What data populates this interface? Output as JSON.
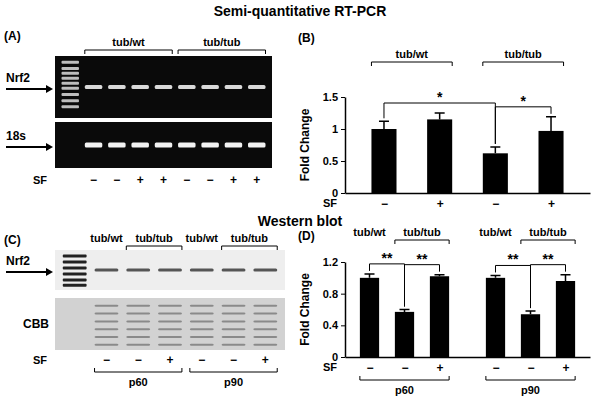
{
  "headings": [
    "Semi-quantitative RT-PCR",
    "Western blot"
  ],
  "gels": [
    {
      "panel_label": "(A)",
      "rows": [
        {
          "label": "Nrf2",
          "arrow": true
        },
        {
          "label": "18s",
          "arrow": true
        }
      ],
      "groups": [
        "tub/wt",
        "tub/wt",
        "tub/wt",
        "tub/wt",
        "tub/tub",
        "tub/tub",
        "tub/tub",
        "tub/tub"
      ],
      "sf_label": "SF",
      "sf": [
        "−",
        "−",
        "+",
        "+",
        "−",
        "−",
        "+",
        "+"
      ]
    },
    {
      "panel_label": "(C)",
      "rows": [
        {
          "label": "Nrf2",
          "arrow": true
        },
        {
          "label": "CBB",
          "arrow": false
        }
      ],
      "groups": [
        "tub/wt",
        "tub/tub",
        "tub/tub",
        "tub/wt",
        "tub/tub",
        "tub/tub"
      ],
      "sf_label": "SF",
      "sf": [
        "−",
        "−",
        "+",
        "−",
        "−",
        "+"
      ],
      "subgroups": [
        "p60",
        "p60",
        "p60",
        "p90",
        "p90",
        "p90"
      ]
    }
  ],
  "chart_data": [
    {
      "type": "bar",
      "panel_label": "(B)",
      "y_label": "Fold Change",
      "x_label": "SF",
      "categories": [
        "−",
        "+",
        "−",
        "+"
      ],
      "groups": [
        "tub/wt",
        "tub/wt",
        "tub/tub",
        "tub/tub"
      ],
      "values": [
        1,
        1.15,
        0.62,
        0.97
      ],
      "errors": [
        0.12,
        0.1,
        0.1,
        0.22
      ],
      "color": "#000000",
      "ylim": [
        0,
        1.5
      ],
      "yticks": [
        0,
        0.5,
        1,
        1.5
      ],
      "annotations": [
        {
          "text": "*",
          "from": 0,
          "to": 2
        },
        {
          "text": "*",
          "from": 2,
          "to": 3
        }
      ]
    },
    {
      "type": "bar",
      "panel_label": "(D)",
      "y_label": "Fold Change",
      "x_label": "SF",
      "categories": [
        "−",
        "−",
        "+",
        "−",
        "−",
        "+"
      ],
      "groups": [
        "tub/wt",
        "tub/tub",
        "tub/tub",
        "tub/wt",
        "tub/tub",
        "tub/tub"
      ],
      "subgroups": [
        "p60",
        "p60",
        "p60",
        "p90",
        "p90",
        "p90"
      ],
      "values": [
        1,
        0.57,
        1.02,
        1,
        0.54,
        0.96
      ],
      "errors": [
        0.05,
        0.03,
        0.02,
        0.03,
        0.04,
        0.08
      ],
      "color": "#000000",
      "ylim": [
        0,
        1.2
      ],
      "yticks": [
        0,
        0.4,
        0.8,
        1.2
      ],
      "annotations": [
        {
          "text": "**",
          "from": 0,
          "to": 1
        },
        {
          "text": "**",
          "from": 1,
          "to": 2
        },
        {
          "text": "**",
          "from": 3,
          "to": 4
        },
        {
          "text": "**",
          "from": 4,
          "to": 5
        }
      ]
    }
  ]
}
